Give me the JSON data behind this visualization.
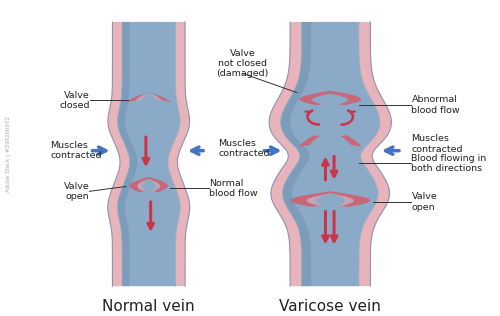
{
  "title_left": "Normal vein",
  "title_right": "Varicose vein",
  "bg_color": "#ffffff",
  "vein_wall_color": "#e8b4bc",
  "vein_lumen_color": "#8aaac8",
  "vein_lumen_dark": "#6888a8",
  "valve_color": "#d06070",
  "valve_light": "#e8a0a8",
  "arrow_red": "#cc3344",
  "arrow_blue": "#4472c4",
  "text_color": "#222222",
  "title_fontsize": 11,
  "label_fontsize": 6.8,
  "watermark": "Adobe Stock | #299260072"
}
